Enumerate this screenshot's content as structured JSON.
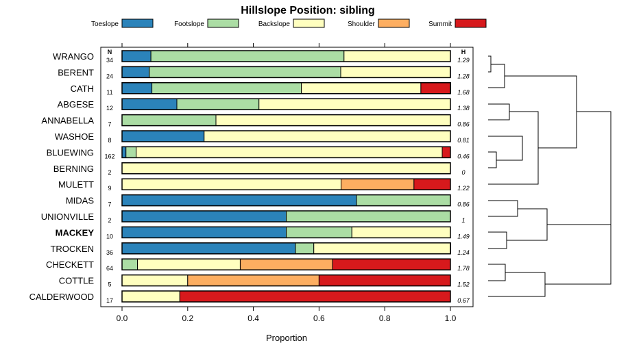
{
  "chart_data": {
    "type": "bar",
    "orientation": "horizontal",
    "stacked": true,
    "title": "Hillslope Position: sibling",
    "xlabel": "Proportion",
    "xlim": [
      0,
      1
    ],
    "xticks": [
      "0.0",
      "0.2",
      "0.4",
      "0.6",
      "0.8",
      "1.0"
    ],
    "n_header": "N",
    "h_header": "H",
    "highlight": "MACKEY",
    "categories": [
      "WRANGO",
      "BERENT",
      "CATH",
      "ABGESE",
      "ANNABELLA",
      "WASHOE",
      "BLUEWING",
      "BERNING",
      "MULETT",
      "MIDAS",
      "UNIONVILLE",
      "MACKEY",
      "TROCKEN",
      "CHECKETT",
      "COTTLE",
      "CALDERWOOD"
    ],
    "n": [
      "34",
      "24",
      "11",
      "12",
      "7",
      "8",
      "162",
      "2",
      "9",
      "7",
      "2",
      "10",
      "36",
      "64",
      "5",
      "17"
    ],
    "h": [
      "1.29",
      "1.28",
      "1.68",
      "1.38",
      "0.86",
      "0.81",
      "0.46",
      "0",
      "1.22",
      "0.86",
      "1",
      "1.49",
      "1.24",
      "1.78",
      "1.52",
      "0.67"
    ],
    "series": [
      {
        "name": "Toeslope",
        "color": "#2B83BA",
        "values": [
          0.088,
          0.083,
          0.091,
          0.167,
          0,
          0.25,
          0.012,
          0,
          0,
          0.714,
          0.5,
          0.5,
          0.528,
          0,
          0,
          0
        ]
      },
      {
        "name": "Footslope",
        "color": "#ABDDA4",
        "values": [
          0.588,
          0.583,
          0.455,
          0.25,
          0.286,
          0,
          0.031,
          0,
          0,
          0.286,
          0.5,
          0.2,
          0.056,
          0.047,
          0,
          0
        ]
      },
      {
        "name": "Backslope",
        "color": "#FFFFBF",
        "values": [
          0.324,
          0.333,
          0.364,
          0.583,
          0.714,
          0.75,
          0.932,
          1,
          0.667,
          0,
          0,
          0.3,
          0.417,
          0.313,
          0.2,
          0.176
        ]
      },
      {
        "name": "Shoulder",
        "color": "#FDAE61",
        "values": [
          0,
          0,
          0,
          0,
          0,
          0,
          0,
          0,
          0.222,
          0,
          0,
          0,
          0,
          0.281,
          0.4,
          0
        ]
      },
      {
        "name": "Summit",
        "color": "#D7191C",
        "values": [
          0,
          0,
          0.091,
          0,
          0,
          0,
          0.025,
          0,
          0.111,
          0,
          0,
          0,
          0,
          0.359,
          0.4,
          0.824
        ]
      }
    ]
  }
}
